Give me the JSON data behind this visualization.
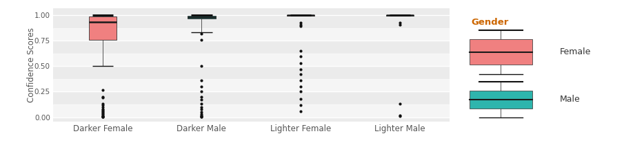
{
  "categories": [
    "Darker Female",
    "Darker Male",
    "Lighter Female",
    "Lighter Male"
  ],
  "gender_colors": {
    "Female": "#F08080",
    "Male": "#2EB5AD"
  },
  "panel_bg": "#EBEBEB",
  "fig_bg": "#FFFFFF",
  "grid_color": "#FFFFFF",
  "ylabel": "Confidence Scores",
  "legend_title": "Gender",
  "yticks": [
    0.0,
    0.25,
    0.5,
    0.75,
    1.0
  ],
  "ytick_labels": [
    "0.00",
    "0.25",
    "0.50",
    "0.75",
    "1.00"
  ],
  "boxes": {
    "Darker Female": {
      "q1": 0.76,
      "median": 0.935,
      "q3": 0.985,
      "whisker_low": 0.5,
      "whisker_high": 1.0,
      "outliers": [
        0.27,
        0.2,
        0.19,
        0.13,
        0.12,
        0.1,
        0.08,
        0.07,
        0.06,
        0.05,
        0.04,
        0.03,
        0.02,
        0.01,
        0.005,
        0.002,
        0.001
      ]
    },
    "Darker Male": {
      "q1": 0.97,
      "median": 0.982,
      "q3": 0.992,
      "whisker_low": 0.83,
      "whisker_high": 1.0,
      "outliers": [
        0.82,
        0.76,
        0.5,
        0.36,
        0.3,
        0.25,
        0.2,
        0.17,
        0.13,
        0.1,
        0.08,
        0.05,
        0.03,
        0.02,
        0.01,
        0.005,
        0.001
      ]
    },
    "Lighter Female": {
      "q1": 0.997,
      "median": 0.999,
      "q3": 1.0,
      "whisker_low": 0.997,
      "whisker_high": 1.0,
      "outliers": [
        0.93,
        0.91,
        0.89,
        0.65,
        0.6,
        0.53,
        0.47,
        0.42,
        0.36,
        0.3,
        0.25,
        0.18,
        0.12,
        0.06
      ]
    },
    "Lighter Male": {
      "q1": 0.997,
      "median": 0.999,
      "q3": 1.0,
      "whisker_low": 0.997,
      "whisker_high": 1.0,
      "outliers": [
        0.93,
        0.91,
        0.13,
        0.02,
        0.01
      ]
    }
  },
  "box_width": 0.28,
  "figsize": [
    9.05,
    2.14
  ],
  "dpi": 100
}
